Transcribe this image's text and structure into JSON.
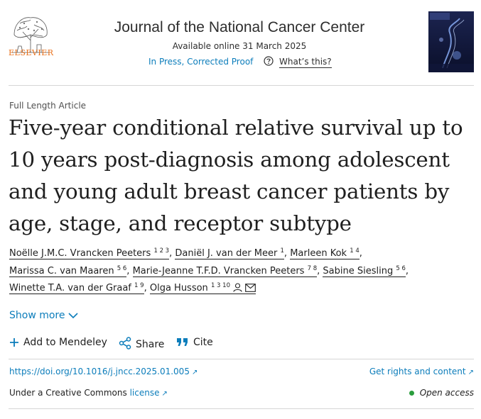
{
  "header": {
    "publisher": "ELSEVIER",
    "journal_title": "Journal of the National Cancer Center",
    "available": "Available online 31 March 2025",
    "status": "In Press, Corrected Proof",
    "whats_this": "What’s this?"
  },
  "article": {
    "type": "Full Length Article",
    "title": "Five-year conditional relative survival up to 10 years post-diagnosis among adolescent and young adult breast cancer patients by age, stage, and receptor subtype",
    "authors": [
      {
        "name": "Noëlle J.M.C. Vrancken Peeters",
        "sup": "1 2 3"
      },
      {
        "name": "Daniël J. van der Meer",
        "sup": "1"
      },
      {
        "name": "Marleen Kok",
        "sup": "1 4"
      },
      {
        "name": "Marissa C. van Maaren",
        "sup": "5 6"
      },
      {
        "name": "Marie-Jeanne T.F.D. Vrancken Peeters",
        "sup": "7 8"
      },
      {
        "name": "Sabine Siesling",
        "sup": "5 6"
      },
      {
        "name": "Winette T.A. van der Graaf",
        "sup": "1 9"
      },
      {
        "name": "Olga Husson",
        "sup": "1 3 10"
      }
    ],
    "separator": ",",
    "show_more": "Show more"
  },
  "actions": {
    "mendeley": "Add to Mendeley",
    "share": "Share",
    "cite": "Cite"
  },
  "links": {
    "doi": "https://doi.org/10.1016/j.jncc.2025.01.005",
    "rights": "Get rights and content",
    "license_prefix": "Under a Creative Commons",
    "license_link": "license",
    "open_access": "Open access"
  },
  "colors": {
    "link": "#0c7dbb",
    "publisher": "#e9711c",
    "open_access_dot": "#2a9d3d"
  }
}
